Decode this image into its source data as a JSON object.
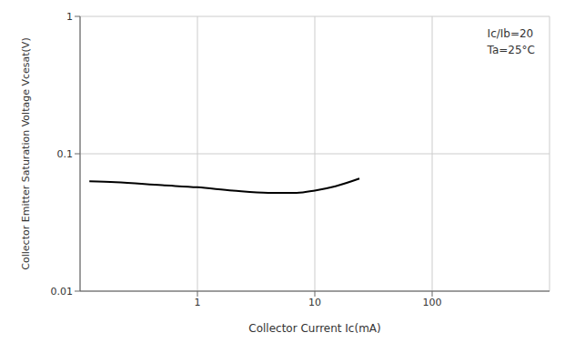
{
  "chart_data": {
    "type": "line",
    "x_label": "Collector Current  Ic(mA)",
    "y_label": "Collector Emitter Saturation Voltage Vcesat(V)",
    "annotations": [
      "Ic/Ib=20",
      "Ta=25°C"
    ],
    "x": [
      0.12,
      0.2,
      0.5,
      1,
      2,
      4,
      7,
      10,
      15,
      24
    ],
    "values": [
      0.063,
      0.062,
      0.059,
      0.057,
      0.054,
      0.052,
      0.052,
      0.054,
      0.058,
      0.066
    ],
    "color": "#000000",
    "xlim": [
      0.1,
      1000
    ],
    "ylim": [
      0.01,
      1
    ],
    "xticks": [
      1,
      10,
      100
    ],
    "yticks": [
      0.01,
      0.1,
      1
    ],
    "log": true,
    "grid": true
  }
}
